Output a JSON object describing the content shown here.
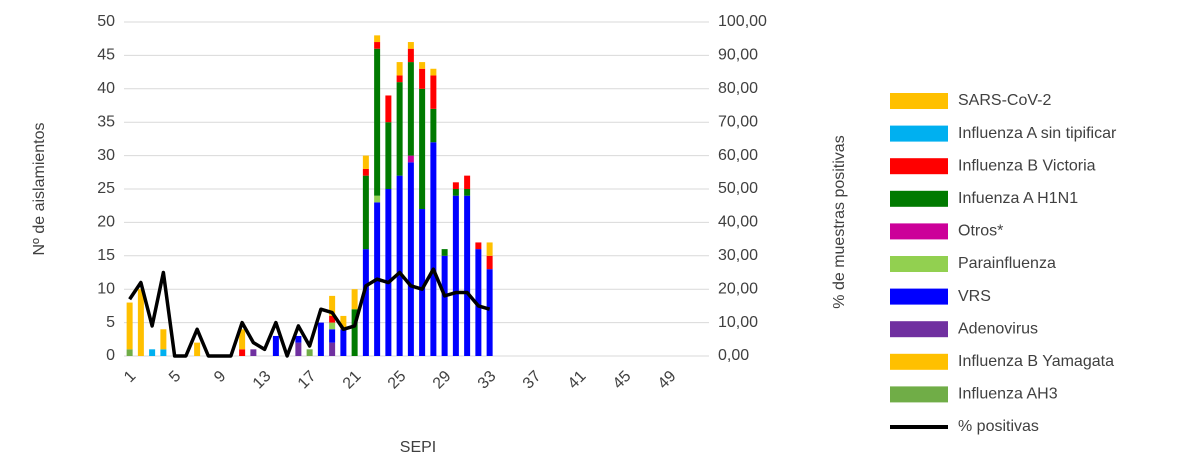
{
  "chart_data": {
    "type": "bar",
    "stacked": true,
    "ylabel": "Nº de aislamientos",
    "y2label": "% de muestras positivas",
    "xlabel": "SEPI",
    "categories": [
      "1",
      null,
      null,
      null,
      "5",
      null,
      null,
      null,
      "9",
      null,
      null,
      null,
      "13",
      null,
      null,
      null,
      "17",
      null,
      null,
      null,
      "21",
      null,
      null,
      null,
      "25",
      null,
      null,
      null,
      "29",
      null,
      null,
      null,
      "33",
      null,
      null,
      null,
      "37",
      null,
      null,
      null,
      "41",
      null,
      null,
      null,
      "45",
      null,
      null,
      null,
      "49",
      null,
      null,
      null
    ],
    "ylim": [
      0,
      50
    ],
    "yticks": [
      0,
      5,
      10,
      15,
      20,
      25,
      30,
      35,
      40,
      45,
      50
    ],
    "y2lim": [
      0,
      100
    ],
    "y2ticks": [
      {
        "value": 0,
        "label": "0,00"
      },
      {
        "value": 10,
        "label": "10,00"
      },
      {
        "value": 20,
        "label": "20,00"
      },
      {
        "value": 30,
        "label": "30,00"
      },
      {
        "value": 40,
        "label": "40,00"
      },
      {
        "value": 50,
        "label": "50,00"
      },
      {
        "value": 60,
        "label": "60,00"
      },
      {
        "value": 70,
        "label": "70,00"
      },
      {
        "value": 80,
        "label": "80,00"
      },
      {
        "value": 90,
        "label": "90,00"
      },
      {
        "value": 100,
        "label": "100,00"
      }
    ],
    "grid": true,
    "legend": "right",
    "series": [
      {
        "name": "SARS-CoV-2",
        "color": "#ffc000",
        "values": [
          7,
          10,
          0,
          3,
          0,
          0,
          2,
          0,
          0,
          0,
          3,
          0,
          0,
          0,
          0,
          0,
          0,
          0,
          3,
          2,
          3,
          2,
          1,
          0,
          2,
          1,
          1,
          1,
          0,
          0,
          0,
          0,
          2,
          null,
          null,
          null,
          null,
          null,
          null,
          null,
          null,
          null,
          null,
          null,
          null,
          null,
          null,
          null,
          null,
          null,
          null,
          null
        ]
      },
      {
        "name": "Influenza A sin tipificar",
        "color": "#00b0f0",
        "values": [
          0,
          0,
          1,
          1,
          0,
          0,
          0,
          0,
          0,
          0,
          0,
          0,
          0,
          0,
          0,
          0,
          0,
          0,
          0,
          0,
          0,
          0,
          0,
          0,
          0,
          0,
          0,
          0,
          0,
          0,
          0,
          0,
          0,
          null,
          null,
          null,
          null,
          null,
          null,
          null,
          null,
          null,
          null,
          null,
          null,
          null,
          null,
          null,
          null,
          null,
          null,
          null
        ]
      },
      {
        "name": "Influenza B Victoria",
        "color": "#ff0000",
        "values": [
          0,
          0,
          0,
          0,
          0,
          0,
          0,
          0,
          0,
          0,
          1,
          0,
          0,
          0,
          0,
          0,
          0,
          0,
          1,
          0,
          0,
          1,
          1,
          4,
          1,
          2,
          3,
          5,
          0,
          1,
          2,
          1,
          2,
          null,
          null,
          null,
          null,
          null,
          null,
          null,
          null,
          null,
          null,
          null,
          null,
          null,
          null,
          null,
          null,
          null,
          null,
          null
        ]
      },
      {
        "name": "Infuenza A H1N1",
        "color": "#007a00",
        "values": [
          0,
          0,
          0,
          0,
          0,
          0,
          0,
          0,
          0,
          0,
          0,
          0,
          0,
          0,
          0,
          0,
          0,
          0,
          0,
          0,
          7,
          11,
          22,
          10,
          14,
          14,
          18,
          5,
          1,
          1,
          1,
          0,
          0,
          null,
          null,
          null,
          null,
          null,
          null,
          null,
          null,
          null,
          null,
          null,
          null,
          null,
          null,
          null,
          null,
          null,
          null,
          null
        ]
      },
      {
        "name": "Otros*",
        "color": "#cc0099",
        "values": [
          0,
          0,
          0,
          0,
          0,
          0,
          0,
          0,
          0,
          0,
          0,
          0,
          0,
          0,
          0,
          0,
          0,
          0,
          0,
          0,
          0,
          0,
          0,
          0,
          0,
          1,
          0,
          0,
          0,
          0,
          0,
          0,
          0,
          null,
          null,
          null,
          null,
          null,
          null,
          null,
          null,
          null,
          null,
          null,
          null,
          null,
          null,
          null,
          null,
          null,
          null,
          null
        ]
      },
      {
        "name": "Parainfluenza",
        "color": "#92d050",
        "values": [
          0,
          0,
          0,
          0,
          0,
          0,
          0,
          0,
          0,
          0,
          0,
          0,
          0,
          0,
          0,
          0,
          0,
          0,
          1,
          0,
          0,
          0,
          1,
          0,
          0,
          0,
          0,
          0,
          0,
          0,
          0,
          0,
          0,
          null,
          null,
          null,
          null,
          null,
          null,
          null,
          null,
          null,
          null,
          null,
          null,
          null,
          null,
          null,
          null,
          null,
          null,
          null
        ]
      },
      {
        "name": "VRS",
        "color": "#0000ff",
        "values": [
          0,
          0,
          0,
          0,
          0,
          0,
          0,
          0,
          0,
          0,
          0,
          0,
          0,
          3,
          0,
          1,
          0,
          5,
          2,
          4,
          0,
          16,
          23,
          25,
          27,
          29,
          22,
          32,
          15,
          24,
          24,
          16,
          13,
          null,
          null,
          null,
          null,
          null,
          null,
          null,
          null,
          null,
          null,
          null,
          null,
          null,
          null,
          null,
          null,
          null,
          null,
          null
        ]
      },
      {
        "name": "Adenovirus",
        "color": "#7030a0",
        "values": [
          0,
          0,
          0,
          0,
          0,
          0,
          0,
          0,
          0,
          0,
          0,
          1,
          0,
          0,
          0,
          2,
          0,
          0,
          2,
          0,
          0,
          0,
          0,
          0,
          0,
          0,
          0,
          0,
          0,
          0,
          0,
          0,
          0,
          null,
          null,
          null,
          null,
          null,
          null,
          null,
          null,
          null,
          null,
          null,
          null,
          null,
          null,
          null,
          null,
          null,
          null,
          null
        ]
      },
      {
        "name": "Influenza B Yamagata",
        "color": "#ffc000",
        "values": [
          0,
          0,
          0,
          0,
          0,
          0,
          0,
          0,
          0,
          0,
          0,
          0,
          0,
          0,
          0,
          0,
          0,
          0,
          0,
          0,
          0,
          0,
          0,
          0,
          0,
          0,
          0,
          0,
          0,
          0,
          0,
          0,
          0,
          null,
          null,
          null,
          null,
          null,
          null,
          null,
          null,
          null,
          null,
          null,
          null,
          null,
          null,
          null,
          null,
          null,
          null,
          null
        ]
      },
      {
        "name": "Influenza AH3",
        "color": "#70ad47",
        "values": [
          1,
          0,
          0,
          0,
          0,
          0,
          0,
          0,
          0,
          0,
          0,
          0,
          0,
          0,
          0,
          0,
          1,
          0,
          0,
          0,
          0,
          0,
          0,
          0,
          0,
          0,
          0,
          0,
          0,
          0,
          0,
          0,
          0,
          null,
          null,
          null,
          null,
          null,
          null,
          null,
          null,
          null,
          null,
          null,
          null,
          null,
          null,
          null,
          null,
          null,
          null,
          null
        ]
      },
      {
        "name": "% positivas",
        "color": "#000000",
        "axis": "y2",
        "type": "line",
        "values": [
          17,
          22,
          9,
          25,
          0,
          0,
          8,
          0,
          0,
          0,
          10,
          4,
          2,
          10,
          0,
          9,
          3,
          14,
          13,
          8,
          9,
          21,
          23,
          22,
          25,
          21,
          20,
          26,
          18,
          19,
          19,
          15,
          14,
          null,
          null,
          null,
          null,
          null,
          null,
          null,
          null,
          null,
          null,
          null,
          null,
          null,
          null,
          null,
          null,
          null,
          null,
          null
        ]
      }
    ]
  }
}
